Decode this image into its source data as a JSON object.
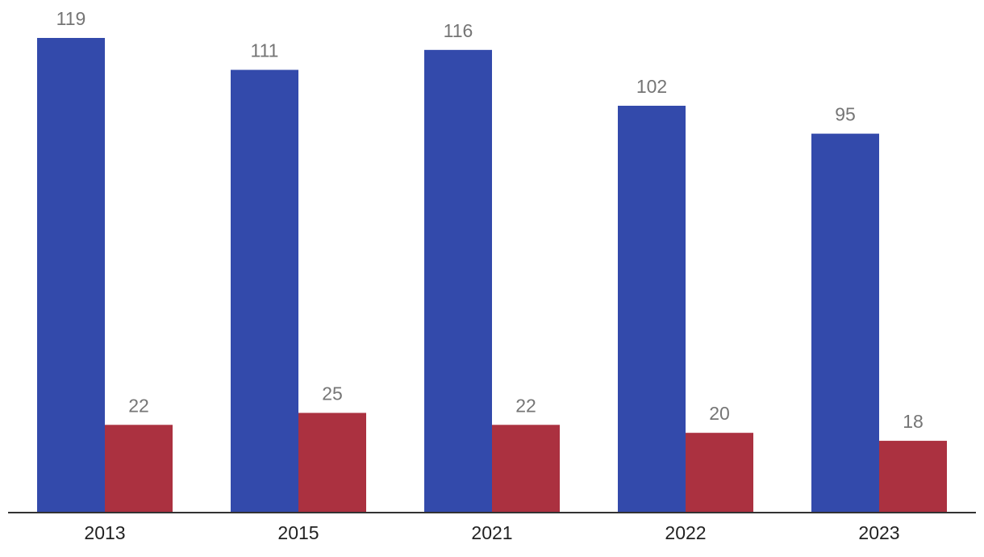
{
  "chart_data": {
    "type": "bar",
    "title": "",
    "xlabel": "",
    "ylabel": "",
    "categories": [
      "2013",
      "2015",
      "2021",
      "2022",
      "2023"
    ],
    "series": [
      {
        "color": "#334aab",
        "values": [
          119,
          111,
          116,
          102,
          95
        ]
      },
      {
        "color": "#ab3140",
        "values": [
          22,
          25,
          22,
          20,
          18
        ]
      }
    ],
    "ylim": [
      0,
      130
    ],
    "grid": false,
    "legend": "none",
    "data_labels": true
  }
}
